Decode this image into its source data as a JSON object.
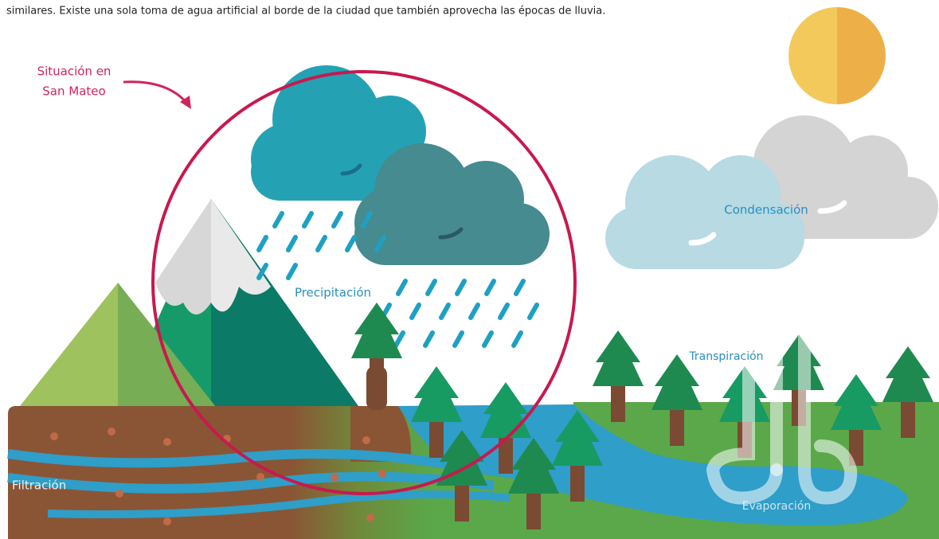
{
  "intro": "similares. Existe una sola toma de agua artificial al borde de la ciudad que también aprovecha las épocas de lluvia.",
  "callout": {
    "lines": [
      "Situación en",
      "San Mateo"
    ]
  },
  "labels": {
    "condensation": "Condensación",
    "precipitation": "Precipitación",
    "transpiration": "Transpiración",
    "filtration": "Filtración",
    "evaporation": "Evaporación"
  }
}
